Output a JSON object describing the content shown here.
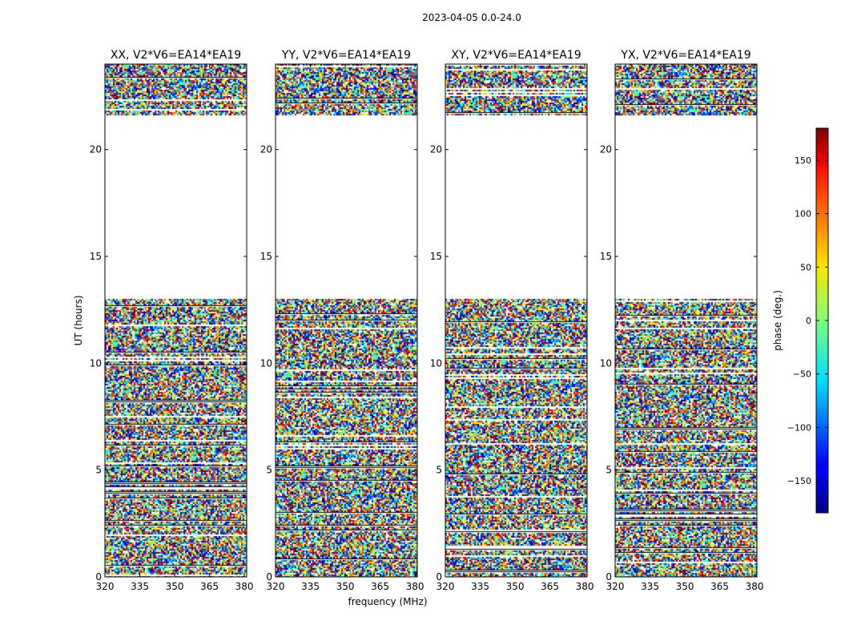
{
  "figure": {
    "suptitle": "2023-04-05 0.0-24.0",
    "ylabel": "UT (hours)",
    "xlabel": "frequency (MHz)",
    "colorbar_label": "phase (deg.)",
    "colorbar_ticks": [
      "150",
      "100",
      "50",
      "0",
      "−50",
      "−100",
      "−150"
    ],
    "colorbar_tick_values": [
      150,
      100,
      50,
      0,
      -50,
      -100,
      -150
    ],
    "colorbar_range": [
      -180,
      180
    ]
  },
  "chart_data": [
    {
      "type": "heatmap",
      "title": "XX, V2*V6=EA14*EA19",
      "xlabel": "",
      "ylabel": "UT (hours)",
      "xlim": [
        320,
        381
      ],
      "ylim": [
        0,
        24
      ],
      "x_ticks": [
        "320",
        "335",
        "350",
        "365",
        "380"
      ],
      "x_tick_values": [
        320,
        335,
        350,
        365,
        380
      ],
      "y_ticks": [
        "0",
        "5",
        "10",
        "15",
        "20"
      ],
      "y_tick_values": [
        0,
        5,
        10,
        15,
        20
      ],
      "z_label": "phase (deg.)",
      "z_range": [
        -180,
        180
      ],
      "data_ut_bands": [
        [
          0.0,
          13.0
        ],
        [
          21.6,
          24.0
        ]
      ],
      "empty_ut_range": [
        13.0,
        21.6
      ]
    },
    {
      "type": "heatmap",
      "title": "YY, V2*V6=EA14*EA19",
      "xlabel": "frequency (MHz)",
      "ylabel": "",
      "xlim": [
        320,
        381
      ],
      "ylim": [
        0,
        24
      ],
      "x_ticks": [
        "320",
        "335",
        "350",
        "365",
        "380"
      ],
      "x_tick_values": [
        320,
        335,
        350,
        365,
        380
      ],
      "y_ticks": [
        "0",
        "5",
        "10",
        "15",
        "20"
      ],
      "y_tick_values": [
        0,
        5,
        10,
        15,
        20
      ],
      "z_label": "phase (deg.)",
      "z_range": [
        -180,
        180
      ],
      "data_ut_bands": [
        [
          0.0,
          13.0
        ],
        [
          21.6,
          24.0
        ]
      ],
      "empty_ut_range": [
        13.0,
        21.6
      ]
    },
    {
      "type": "heatmap",
      "title": "XY, V2*V6=EA14*EA19",
      "xlabel": "",
      "ylabel": "",
      "xlim": [
        320,
        381
      ],
      "ylim": [
        0,
        24
      ],
      "x_ticks": [
        "320",
        "335",
        "350",
        "365",
        "380"
      ],
      "x_tick_values": [
        320,
        335,
        350,
        365,
        380
      ],
      "y_ticks": [
        "0",
        "5",
        "10",
        "15",
        "20"
      ],
      "y_tick_values": [
        0,
        5,
        10,
        15,
        20
      ],
      "z_label": "phase (deg.)",
      "z_range": [
        -180,
        180
      ],
      "data_ut_bands": [
        [
          0.0,
          13.0
        ],
        [
          21.6,
          24.0
        ]
      ],
      "empty_ut_range": [
        13.0,
        21.6
      ]
    },
    {
      "type": "heatmap",
      "title": "YX, V2*V6=EA14*EA19",
      "xlabel": "",
      "ylabel": "",
      "xlim": [
        320,
        381
      ],
      "ylim": [
        0,
        24
      ],
      "x_ticks": [
        "320",
        "335",
        "350",
        "365",
        "380"
      ],
      "x_tick_values": [
        320,
        335,
        350,
        365,
        380
      ],
      "y_ticks": [
        "0",
        "5",
        "10",
        "15",
        "20"
      ],
      "y_tick_values": [
        0,
        5,
        10,
        15,
        20
      ],
      "z_label": "phase (deg.)",
      "z_range": [
        -180,
        180
      ],
      "data_ut_bands": [
        [
          0.0,
          13.0
        ],
        [
          21.6,
          24.0
        ]
      ],
      "empty_ut_range": [
        13.0,
        21.6
      ]
    }
  ]
}
